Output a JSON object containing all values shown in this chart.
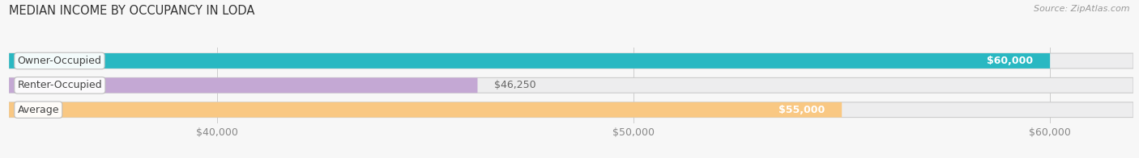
{
  "title": "MEDIAN INCOME BY OCCUPANCY IN LODA",
  "source": "Source: ZipAtlas.com",
  "categories": [
    "Owner-Occupied",
    "Renter-Occupied",
    "Average"
  ],
  "values": [
    60000,
    46250,
    55000
  ],
  "bar_colors": [
    "#29B8C2",
    "#C4A8D4",
    "#F9C883"
  ],
  "bar_bg_colors": [
    "#EDEDEE",
    "#EDEDEE",
    "#EDEDEE"
  ],
  "value_labels": [
    "$60,000",
    "$46,250",
    "$55,000"
  ],
  "label_inside": [
    true,
    false,
    true
  ],
  "xmin": 35000,
  "xmax": 62000,
  "xticks": [
    40000,
    50000,
    60000
  ],
  "xtick_labels": [
    "$40,000",
    "$50,000",
    "$60,000"
  ],
  "bar_height": 0.62,
  "background_color": "#f7f7f7",
  "title_fontsize": 10.5,
  "source_fontsize": 8,
  "label_fontsize": 9,
  "tick_fontsize": 9
}
